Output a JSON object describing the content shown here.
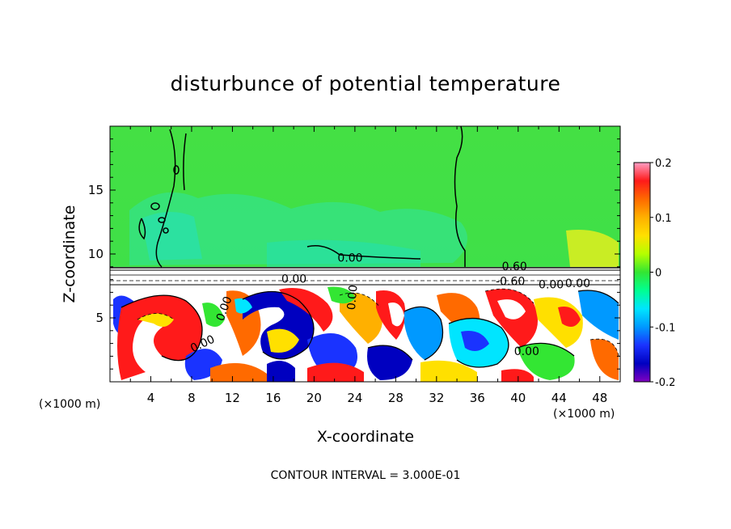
{
  "chart_data": {
    "type": "heatmap",
    "title": "disturbunce of potential temperature",
    "xlabel": "X-coordinate",
    "ylabel": "Z-coordinate",
    "x_unit_left": "(×1000 m)",
    "x_unit_right": "(×1000 m)",
    "xlim": [
      0,
      50
    ],
    "ylim": [
      0,
      20
    ],
    "x_ticks": [
      "4",
      "8",
      "12",
      "16",
      "20",
      "24",
      "28",
      "32",
      "36",
      "40",
      "44",
      "48"
    ],
    "y_ticks": [
      "5",
      "10",
      "15"
    ],
    "colorbar": {
      "min": -0.2,
      "max": 0.2,
      "tick_labels": [
        "0.2",
        "0.1",
        "0",
        "-0.1",
        "-0.2"
      ],
      "colors": [
        "#ff9ec4",
        "#ff1a1a",
        "#ff6a00",
        "#ffb000",
        "#ffe000",
        "#b4ff00",
        "#33e633",
        "#00ff90",
        "#00e5ff",
        "#0099ff",
        "#1a33ff",
        "#0000c0",
        "#8000c0"
      ]
    },
    "contour_labels": [
      "0.00",
      "0.60",
      "0.00",
      "-0.60",
      "0.00",
      "0.00",
      "0.00",
      "0.00",
      "0.00",
      "0.00"
    ],
    "contour_interval": "CONTOUR INTERVAL = 3.000E-01"
  }
}
